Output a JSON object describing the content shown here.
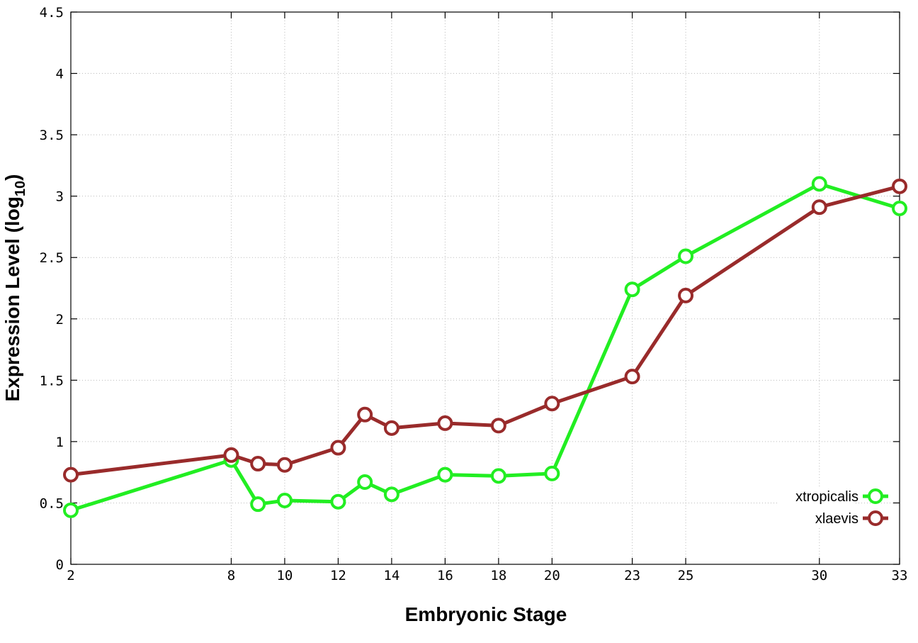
{
  "chart_data": {
    "type": "line",
    "xlabel": "Embryonic Stage",
    "ylabel_main": "Expression Level (log",
    "ylabel_sub": "10",
    "ylabel_close": ")",
    "x_ticks": [
      2,
      8,
      10,
      12,
      14,
      16,
      18,
      20,
      23,
      25,
      30,
      33
    ],
    "x_tick_labels": [
      "2",
      "8",
      "10",
      "12",
      "14",
      "16",
      "18",
      "20",
      "23",
      "25",
      "30",
      "33"
    ],
    "y_ticks": [
      0,
      0.5,
      1,
      1.5,
      2,
      2.5,
      3,
      3.5,
      4,
      4.5
    ],
    "y_tick_labels": [
      "0",
      "0.5",
      "1",
      "1.5",
      "2",
      "2.5",
      "3",
      "3.5",
      "4",
      "4.5"
    ],
    "ylim": [
      0,
      4.5
    ],
    "grid": true,
    "legend_position": "bottom-right",
    "x": [
      2,
      8,
      9,
      10,
      12,
      13,
      14,
      16,
      18,
      20,
      23,
      25,
      30,
      33
    ],
    "series": [
      {
        "name": "xtropicalis",
        "color": "#22ee22",
        "values": [
          0.44,
          0.85,
          0.49,
          0.52,
          0.51,
          0.67,
          0.57,
          0.73,
          0.72,
          0.74,
          2.24,
          2.51,
          3.1,
          2.9
        ]
      },
      {
        "name": "xlaevis",
        "color": "#992b2b",
        "values": [
          0.73,
          0.89,
          0.82,
          0.81,
          0.95,
          1.22,
          1.11,
          1.15,
          1.13,
          1.31,
          1.53,
          2.19,
          2.91,
          3.08
        ]
      }
    ]
  }
}
